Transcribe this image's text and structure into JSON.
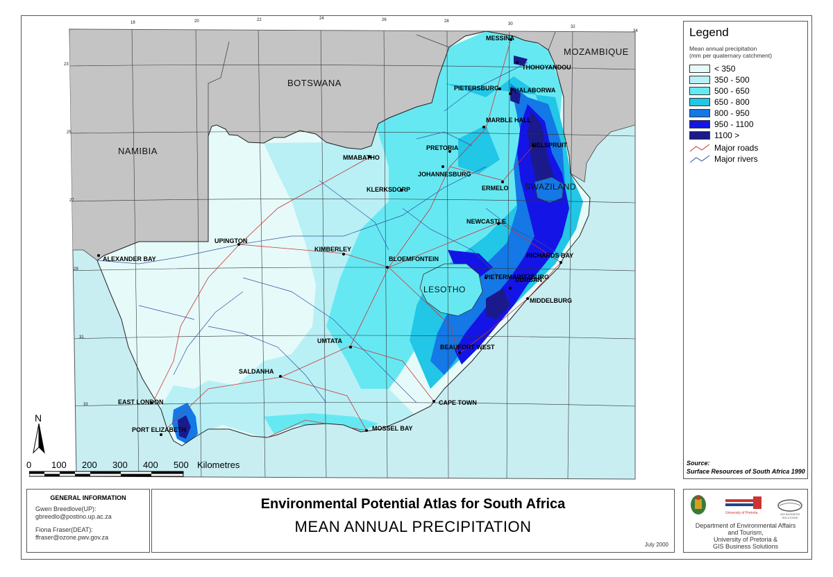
{
  "map": {
    "countries": [
      "BOTSWANA",
      "NAMIBIA",
      "MOZAMBIQUE",
      "SWAZILAND",
      "LESOTHO"
    ],
    "lon_ticks": [
      "18",
      "20",
      "22",
      "24",
      "26",
      "28",
      "30",
      "32",
      "34"
    ],
    "lat_ticks": [
      "23",
      "25",
      "27",
      "29",
      "31",
      "33"
    ],
    "places": [
      {
        "name": "MESSINA"
      },
      {
        "name": "THOHOYANDOU"
      },
      {
        "name": "PIETERSBURG"
      },
      {
        "name": "PHALABORWA"
      },
      {
        "name": "MARBLE HALL"
      },
      {
        "name": "NELSPRUIT"
      },
      {
        "name": "PRETORIA"
      },
      {
        "name": "MMABATHO"
      },
      {
        "name": "JOHANNESBURG"
      },
      {
        "name": "KLERKSDORP"
      },
      {
        "name": "ERMELO"
      },
      {
        "name": "NEWCASTLE"
      },
      {
        "name": "UPINGTON"
      },
      {
        "name": "KIMBERLEY"
      },
      {
        "name": "BLOEMFONTEIN"
      },
      {
        "name": "RICHARDS BAY"
      },
      {
        "name": "ALEXANDER BAY"
      },
      {
        "name": "PIETERMARITZBURG"
      },
      {
        "name": "DURBAN"
      },
      {
        "name": "MIDDELBURG"
      },
      {
        "name": "UMTATA"
      },
      {
        "name": "BEAUFORT WEST"
      },
      {
        "name": "SALDANHA"
      },
      {
        "name": "EAST LONDON"
      },
      {
        "name": "CAPE TOWN"
      },
      {
        "name": "PORT ELIZABETH"
      },
      {
        "name": "MOSSEL BAY"
      }
    ],
    "north": "N",
    "scale_labels": [
      "0",
      "100",
      "200",
      "300",
      "400",
      "500"
    ],
    "scale_unit": "Kilometres"
  },
  "legend": {
    "title": "Legend",
    "subtitle_1": "Mean annual precipitation",
    "subtitle_2": "(mm per quaternary catchment)",
    "classes": [
      {
        "label": "< 350",
        "color": "#e6fafa"
      },
      {
        "label": "350 - 500",
        "color": "#b8f0f5"
      },
      {
        "label": "500 - 650",
        "color": "#66e8f2"
      },
      {
        "label": "650 - 800",
        "color": "#22c6e6"
      },
      {
        "label": "800 - 950",
        "color": "#1478e6"
      },
      {
        "label": "950 - 1100",
        "color": "#1414e6"
      },
      {
        "label": "1100 >",
        "color": "#1a1a8c"
      }
    ],
    "roads_label": "Major roads",
    "rivers_label": "Major rivers",
    "source_label": "Source:",
    "source_text": "Surface Resources of South Africa 1990"
  },
  "info": {
    "heading": "GENERAL INFORMATION",
    "contact1_name": "Gwen Breedlove(UP):",
    "contact1_email": "gbreedlo@postino.up.ac.za",
    "contact2_name": "Fiona Fraser(DEAT):",
    "contact2_email": "ffraser@ozone.pwv.gov.za"
  },
  "title": {
    "main": "Environmental Potential Atlas for South Africa",
    "sub": "MEAN ANNUAL PRECIPITATION",
    "date": "July 2000"
  },
  "credits": {
    "line1": "Department of Environmental Affairs",
    "line2": "and Tourism,",
    "line3": "University of Pretoria &",
    "line4": "GIS Business Solutions",
    "logo_up": "University of Pretoria",
    "logo_gis": "GIS BUSINESS SOLUTIONS"
  }
}
